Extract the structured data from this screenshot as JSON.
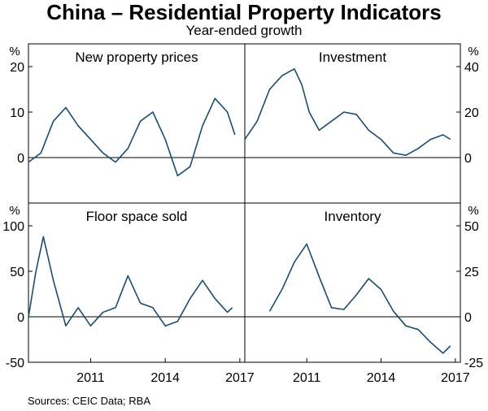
{
  "title": "China – Residential Property Indicators",
  "subtitle": "Year-ended growth",
  "source": "Sources: CEIC Data; RBA",
  "x_ticks": [
    "2011",
    "2014",
    "2017"
  ],
  "colors": {
    "line": "#1b4d6b",
    "axis": "#000000"
  },
  "chart_data": [
    {
      "type": "line",
      "title": "New property prices",
      "unit": "%",
      "ylim": [
        -10,
        25
      ],
      "yticks": [
        "20",
        "10",
        "0"
      ],
      "x": [
        2009.0,
        2009.5,
        2010.0,
        2010.5,
        2011.0,
        2011.5,
        2012.0,
        2012.5,
        2013.0,
        2013.5,
        2014.0,
        2014.5,
        2015.0,
        2015.5,
        2016.0,
        2016.5,
        2017.0,
        2017.3
      ],
      "values": [
        -1,
        1,
        8,
        11,
        7,
        4,
        1,
        -1,
        2,
        8,
        10,
        4,
        -4,
        -2,
        7,
        13,
        10,
        5
      ]
    },
    {
      "type": "line",
      "title": "Investment",
      "unit": "%",
      "ylim": [
        -20,
        50
      ],
      "yticks": [
        "40",
        "20",
        "0"
      ],
      "x": [
        2009.0,
        2009.5,
        2010.0,
        2010.5,
        2011.0,
        2011.3,
        2011.6,
        2012.0,
        2012.5,
        2013.0,
        2013.5,
        2014.0,
        2014.5,
        2015.0,
        2015.5,
        2016.0,
        2016.5,
        2017.0,
        2017.3
      ],
      "values": [
        8,
        16,
        30,
        36,
        39,
        32,
        20,
        12,
        16,
        20,
        19,
        12,
        8,
        2,
        1,
        4,
        8,
        10,
        8
      ]
    },
    {
      "type": "line",
      "title": "Floor space sold",
      "unit": "%",
      "ylim": [
        -50,
        125
      ],
      "yticks": [
        "100",
        "50",
        "0",
        "-50"
      ],
      "x": [
        2009.0,
        2009.3,
        2009.6,
        2010.0,
        2010.5,
        2011.0,
        2011.5,
        2012.0,
        2012.5,
        2013.0,
        2013.5,
        2014.0,
        2014.5,
        2015.0,
        2015.5,
        2016.0,
        2016.5,
        2017.0,
        2017.2
      ],
      "values": [
        0,
        50,
        88,
        40,
        -10,
        10,
        -10,
        5,
        10,
        45,
        15,
        10,
        -10,
        -5,
        20,
        40,
        20,
        5,
        10
      ]
    },
    {
      "type": "line",
      "title": "Inventory",
      "unit": "%",
      "ylim": [
        -25,
        62.5
      ],
      "yticks": [
        "50",
        "25",
        "0",
        "-25"
      ],
      "x": [
        2010.0,
        2010.5,
        2011.0,
        2011.5,
        2012.0,
        2012.5,
        2013.0,
        2013.5,
        2014.0,
        2014.5,
        2015.0,
        2015.5,
        2016.0,
        2016.5,
        2017.0,
        2017.3
      ],
      "values": [
        3,
        15,
        30,
        40,
        22,
        5,
        4,
        12,
        21,
        15,
        3,
        -5,
        -7,
        -14,
        -20,
        -16
      ]
    }
  ]
}
